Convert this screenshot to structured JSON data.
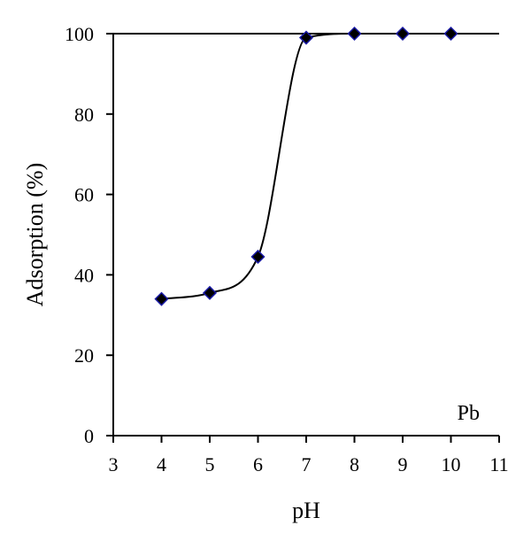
{
  "chart_data": {
    "type": "scatter",
    "xlabel": "pH",
    "ylabel": "Adsorption (%)",
    "xlim": [
      3,
      11
    ],
    "ylim": [
      0,
      100
    ],
    "x_ticks": [
      3,
      4,
      5,
      6,
      7,
      8,
      9,
      10,
      11
    ],
    "y_ticks": [
      0,
      20,
      40,
      60,
      80,
      100
    ],
    "grid": false,
    "legend": "none",
    "annotation": "Pb",
    "series": [
      {
        "x": [
          4,
          5,
          6,
          7,
          8,
          9,
          10
        ],
        "y": [
          34,
          35.5,
          44.5,
          99,
          100,
          100,
          100
        ],
        "marker": "diamond",
        "marker_fill": "#000000",
        "marker_edge": "#1a1aa6",
        "fit_line": "smooth sigmoid"
      }
    ]
  }
}
